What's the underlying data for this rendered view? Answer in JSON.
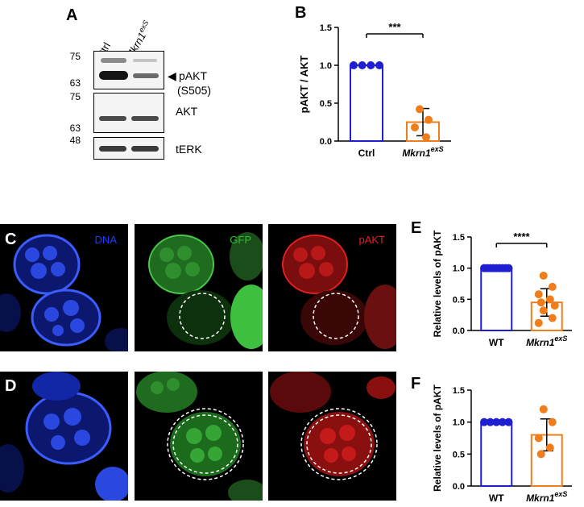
{
  "panel_letters": {
    "a": "A",
    "b": "B",
    "c": "C",
    "d": "D",
    "e": "E",
    "f": "F"
  },
  "western_blot": {
    "lane_labels": [
      "Ctrl",
      "Mkrn1"
    ],
    "lane_label_superscript": "exS",
    "blots": [
      {
        "name": "pAKT",
        "label_line1": "pAKT",
        "label_line2": "(S505)",
        "marker_top": "75",
        "marker_bottom": "63"
      },
      {
        "name": "AKT",
        "label_line1": "AKT",
        "marker_top": "75",
        "marker_bottom": "63"
      },
      {
        "name": "tERK",
        "label_line1": "tERK",
        "marker_top": "48"
      }
    ],
    "arrow": "◀"
  },
  "microscopy": {
    "channels": [
      {
        "name": "DNA",
        "color": "#1a3cff"
      },
      {
        "name": "GFP",
        "color": "#2fbf2f"
      },
      {
        "name": "pAKT",
        "color": "#e52020"
      }
    ]
  },
  "chart_data": [
    {
      "id": "B",
      "type": "bar",
      "categories": [
        "Ctrl",
        "Mkrn1"
      ],
      "category_superscripts": [
        "",
        "exS"
      ],
      "values": [
        1.0,
        0.25
      ],
      "errors": [
        0.0,
        0.18
      ],
      "points": [
        [
          1.0,
          1.0,
          1.0,
          1.0
        ],
        [
          0.42,
          0.28,
          0.18,
          0.05
        ]
      ],
      "ylabel": "pAKT / AKT",
      "ylim": [
        0,
        1.5
      ],
      "yticks": [
        "0.0",
        "0.5",
        "1.0",
        "1.5"
      ],
      "significance": "***",
      "colors": [
        "#1f1fd1",
        "#f07d1c"
      ]
    },
    {
      "id": "E",
      "type": "bar",
      "categories": [
        "WT",
        "Mkrn1"
      ],
      "category_superscripts": [
        "",
        "exS"
      ],
      "values": [
        1.0,
        0.45
      ],
      "errors": [
        0.0,
        0.22
      ],
      "points": [
        [
          1.0,
          1.0,
          1.0,
          1.0,
          1.0,
          1.0,
          1.0,
          1.0,
          1.0
        ],
        [
          0.88,
          0.7,
          0.58,
          0.5,
          0.45,
          0.4,
          0.32,
          0.2,
          0.12
        ]
      ],
      "ylabel": "Relative levels of pAKT",
      "ylim": [
        0,
        1.5
      ],
      "yticks": [
        "0.0",
        "0.5",
        "1.0",
        "1.5"
      ],
      "significance": "****",
      "colors": [
        "#1f1fd1",
        "#f07d1c"
      ]
    },
    {
      "id": "F",
      "type": "bar",
      "categories": [
        "WT",
        "Mkrn1"
      ],
      "category_superscripts": [
        "",
        "exS"
      ],
      "values": [
        1.0,
        0.8
      ],
      "errors": [
        0.0,
        0.25
      ],
      "points": [
        [
          1.0,
          1.0,
          1.0,
          1.0,
          1.0
        ],
        [
          1.2,
          1.0,
          0.75,
          0.6,
          0.5
        ]
      ],
      "ylabel": "Relative levels of pAKT",
      "ylim": [
        0,
        1.5
      ],
      "yticks": [
        "0.0",
        "0.5",
        "1.0",
        "1.5"
      ],
      "significance": "",
      "colors": [
        "#1f1fd1",
        "#f07d1c"
      ]
    }
  ]
}
